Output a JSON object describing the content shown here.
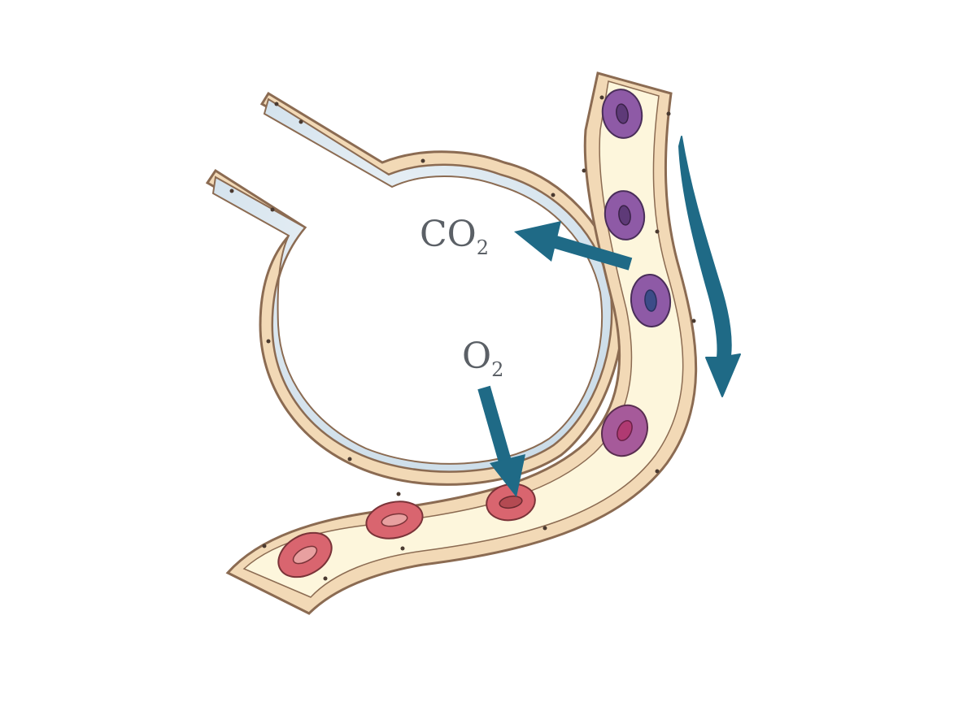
{
  "labels": {
    "co2": {
      "main": "CO",
      "sub": "2"
    },
    "o2": {
      "main": "O",
      "sub": "2"
    }
  },
  "colors": {
    "alveolus_fill": "#d7e4ee",
    "wall": "#f2d9b6",
    "wall_outline": "#8b6b52",
    "capillary_fill": "#fdf6dc",
    "arrow": "#1f6a86",
    "deoxygenated_cell": "#8e5aa6",
    "oxygenated_cell": "#d9656f"
  }
}
